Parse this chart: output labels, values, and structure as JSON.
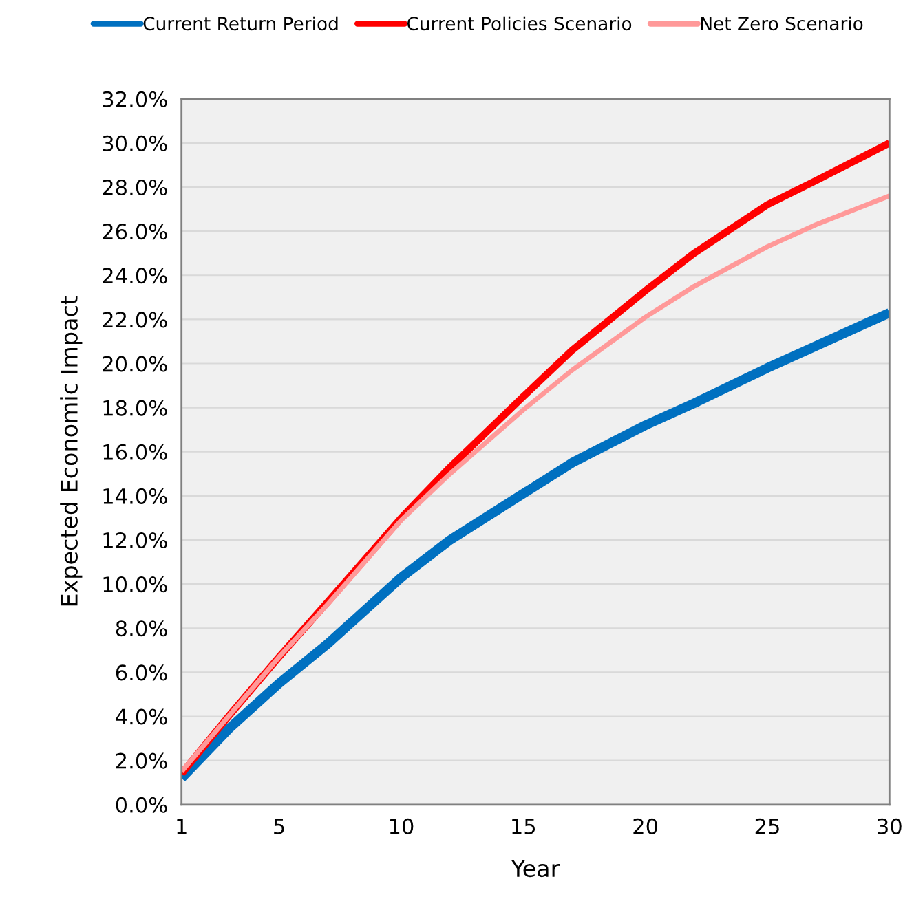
{
  "chart_data": {
    "type": "line",
    "xlabel": "Year",
    "ylabel": "Expected Economic Impact",
    "x": [
      1,
      3,
      5,
      7,
      10,
      12,
      15,
      17,
      20,
      22,
      25,
      27,
      30
    ],
    "series": [
      {
        "name": "Current Return Period",
        "color": "#0070c0",
        "values": [
          1.2,
          3.5,
          5.5,
          7.3,
          10.3,
          12.0,
          14.1,
          15.5,
          17.2,
          18.2,
          19.8,
          20.8,
          22.3
        ]
      },
      {
        "name": "Current Policies Scenario",
        "color": "#ff0000",
        "values": [
          1.4,
          4.1,
          6.7,
          9.2,
          13.0,
          15.3,
          18.5,
          20.6,
          23.3,
          25.0,
          27.2,
          28.3,
          30.0
        ]
      },
      {
        "name": "Net Zero Scenario",
        "color": "#ff9999",
        "values": [
          1.5,
          4.1,
          6.7,
          9.1,
          12.9,
          15.0,
          17.9,
          19.7,
          22.1,
          23.5,
          25.3,
          26.3,
          27.6
        ]
      }
    ],
    "xlim": [
      1,
      30
    ],
    "xticks": [
      1,
      5,
      10,
      15,
      20,
      25,
      30
    ],
    "ylim": [
      0,
      32
    ],
    "yticks": [
      {
        "value": 0,
        "label": "0.0%"
      },
      {
        "value": 2,
        "label": "2.0%"
      },
      {
        "value": 4,
        "label": "4.0%"
      },
      {
        "value": 6,
        "label": "6.0%"
      },
      {
        "value": 8,
        "label": "8.0%"
      },
      {
        "value": 10,
        "label": "10.0%"
      },
      {
        "value": 12,
        "label": "12.0%"
      },
      {
        "value": 14,
        "label": "14.0%"
      },
      {
        "value": 16,
        "label": "16.0%"
      },
      {
        "value": 18,
        "label": "18.0%"
      },
      {
        "value": 20,
        "label": "20.0%"
      },
      {
        "value": 22,
        "label": "22.0%"
      },
      {
        "value": 24,
        "label": "24.0%"
      },
      {
        "value": 26,
        "label": "26.0%"
      },
      {
        "value": 28,
        "label": "28.0%"
      },
      {
        "value": 30,
        "label": "30.0%"
      },
      {
        "value": 32,
        "label": "32.0%"
      }
    ],
    "grid": "y",
    "legend": "top",
    "marker": "none",
    "line_style": "solid"
  }
}
